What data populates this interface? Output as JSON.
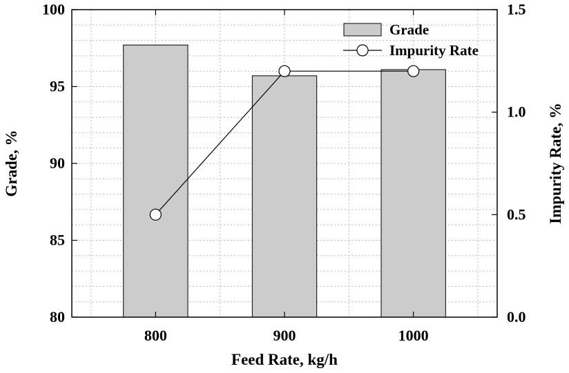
{
  "chart_data": {
    "type": "bar",
    "categories": [
      "800",
      "900",
      "1000"
    ],
    "series": [
      {
        "name": "Grade",
        "type": "bar",
        "axis": "left",
        "values": [
          97.7,
          95.7,
          96.1
        ]
      },
      {
        "name": "Impurity Rate",
        "type": "line",
        "axis": "right",
        "values": [
          0.5,
          1.2,
          1.2
        ]
      }
    ],
    "xlabel": "Feed Rate, kg/h",
    "ylabel": "Grade, %",
    "y2label": "Impurity Rate, %",
    "ylim": [
      80,
      100
    ],
    "y2lim": [
      0.0,
      1.5
    ],
    "yticks": [
      "80",
      "85",
      "90",
      "95",
      "100"
    ],
    "y2ticks": [
      "0.0",
      "0.5",
      "1.0",
      "1.5"
    ],
    "grid": true,
    "legend": "top-right",
    "colors": {
      "bar_fill": "#cccccc",
      "line": "#000000",
      "marker_fill": "#ffffff"
    }
  }
}
